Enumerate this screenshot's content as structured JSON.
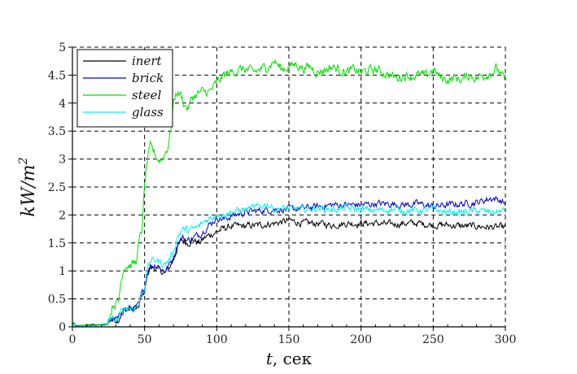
{
  "chart_data": {
    "type": "line",
    "title": "",
    "xlabel": "t, сек",
    "xlabel_var": "t",
    "xlabel_unit": ", сек",
    "ylabel": "kW/m^2",
    "ylabel_main": "kW/m",
    "ylabel_sup": "2",
    "xlim": [
      0,
      300
    ],
    "ylim": [
      0,
      5
    ],
    "xticks": [
      0,
      50,
      100,
      150,
      200,
      250,
      300
    ],
    "xtick_labels": [
      "0",
      "50",
      "100",
      "150",
      "200",
      "250",
      "300"
    ],
    "yticks": [
      0,
      0.5,
      1,
      1.5,
      2,
      2.5,
      3,
      3.5,
      4,
      4.5,
      5
    ],
    "ytick_labels": [
      "0",
      "0.5",
      "1",
      "1.5",
      "2",
      "2.5",
      "3",
      "3.5",
      "4",
      "4.5",
      "5"
    ],
    "x_minor_step": 10,
    "grid": true,
    "grid_style": "dashed",
    "legend_position": "upper left",
    "series": [
      {
        "name": "inert",
        "color": "#000000",
        "noise": 0.05,
        "points": [
          [
            0,
            0.05
          ],
          [
            1,
            0.07
          ],
          [
            2,
            0.02
          ],
          [
            5,
            0.02
          ],
          [
            15,
            0.03
          ],
          [
            24,
            0.04
          ],
          [
            26,
            0.12
          ],
          [
            32,
            0.13
          ],
          [
            34,
            0.25
          ],
          [
            36,
            0.3
          ],
          [
            44,
            0.32
          ],
          [
            46,
            0.35
          ],
          [
            48,
            0.55
          ],
          [
            50,
            0.62
          ],
          [
            52,
            0.95
          ],
          [
            54,
            1.05
          ],
          [
            58,
            1.05
          ],
          [
            61,
            1.0
          ],
          [
            64,
            0.95
          ],
          [
            67,
            1.05
          ],
          [
            70,
            1.2
          ],
          [
            73,
            1.45
          ],
          [
            76,
            1.55
          ],
          [
            80,
            1.5
          ],
          [
            84,
            1.55
          ],
          [
            88,
            1.5
          ],
          [
            92,
            1.6
          ],
          [
            96,
            1.65
          ],
          [
            100,
            1.7
          ],
          [
            104,
            1.75
          ],
          [
            110,
            1.8
          ],
          [
            120,
            1.8
          ],
          [
            130,
            1.82
          ],
          [
            140,
            1.85
          ],
          [
            150,
            1.9
          ],
          [
            160,
            1.85
          ],
          [
            170,
            1.85
          ],
          [
            180,
            1.82
          ],
          [
            190,
            1.85
          ],
          [
            200,
            1.85
          ],
          [
            210,
            1.85
          ],
          [
            220,
            1.83
          ],
          [
            230,
            1.85
          ],
          [
            240,
            1.85
          ],
          [
            250,
            1.82
          ],
          [
            260,
            1.82
          ],
          [
            270,
            1.8
          ],
          [
            280,
            1.8
          ],
          [
            290,
            1.78
          ],
          [
            300,
            1.78
          ]
        ]
      },
      {
        "name": "brick",
        "color": "#0000c8",
        "noise": 0.05,
        "points": [
          [
            0,
            0.03
          ],
          [
            1,
            0.06
          ],
          [
            2,
            0.02
          ],
          [
            5,
            0.02
          ],
          [
            15,
            0.03
          ],
          [
            24,
            0.04
          ],
          [
            26,
            0.13
          ],
          [
            32,
            0.14
          ],
          [
            34,
            0.27
          ],
          [
            36,
            0.32
          ],
          [
            44,
            0.34
          ],
          [
            46,
            0.38
          ],
          [
            48,
            0.58
          ],
          [
            50,
            0.65
          ],
          [
            52,
            1.0
          ],
          [
            54,
            1.1
          ],
          [
            58,
            1.1
          ],
          [
            61,
            1.05
          ],
          [
            64,
            1.0
          ],
          [
            67,
            1.1
          ],
          [
            70,
            1.25
          ],
          [
            73,
            1.5
          ],
          [
            76,
            1.6
          ],
          [
            80,
            1.55
          ],
          [
            84,
            1.6
          ],
          [
            88,
            1.65
          ],
          [
            92,
            1.75
          ],
          [
            96,
            1.85
          ],
          [
            100,
            1.95
          ],
          [
            105,
            1.92
          ],
          [
            110,
            1.98
          ],
          [
            120,
            2.05
          ],
          [
            130,
            2.08
          ],
          [
            140,
            2.1
          ],
          [
            150,
            2.1
          ],
          [
            160,
            2.12
          ],
          [
            170,
            2.15
          ],
          [
            180,
            2.18
          ],
          [
            190,
            2.18
          ],
          [
            200,
            2.18
          ],
          [
            210,
            2.2
          ],
          [
            220,
            2.2
          ],
          [
            230,
            2.18
          ],
          [
            240,
            2.2
          ],
          [
            250,
            2.15
          ],
          [
            260,
            2.18
          ],
          [
            270,
            2.2
          ],
          [
            280,
            2.22
          ],
          [
            290,
            2.3
          ],
          [
            295,
            2.28
          ],
          [
            300,
            2.2
          ]
        ]
      },
      {
        "name": "steel",
        "color": "#00e000",
        "noise": 0.07,
        "points": [
          [
            0,
            0.02
          ],
          [
            1,
            0.08
          ],
          [
            2,
            0.01
          ],
          [
            5,
            0.02
          ],
          [
            10,
            0.04
          ],
          [
            20,
            0.05
          ],
          [
            24,
            0.05
          ],
          [
            26,
            0.2
          ],
          [
            28,
            0.4
          ],
          [
            32,
            0.45
          ],
          [
            34,
            0.9
          ],
          [
            36,
            1.1
          ],
          [
            40,
            1.1
          ],
          [
            44,
            1.15
          ],
          [
            46,
            1.5
          ],
          [
            48,
            1.7
          ],
          [
            50,
            2.5
          ],
          [
            52,
            3.0
          ],
          [
            54,
            3.2
          ],
          [
            56,
            3.15
          ],
          [
            58,
            3.05
          ],
          [
            60,
            2.98
          ],
          [
            62,
            3.0
          ],
          [
            64,
            3.1
          ],
          [
            66,
            3.2
          ],
          [
            68,
            3.5
          ],
          [
            70,
            4.0
          ],
          [
            72,
            4.2
          ],
          [
            75,
            4.15
          ],
          [
            78,
            3.95
          ],
          [
            80,
            3.9
          ],
          [
            83,
            4.1
          ],
          [
            86,
            4.15
          ],
          [
            90,
            4.2
          ],
          [
            95,
            4.2
          ],
          [
            100,
            4.35
          ],
          [
            105,
            4.5
          ],
          [
            110,
            4.55
          ],
          [
            115,
            4.6
          ],
          [
            120,
            4.6
          ],
          [
            125,
            4.55
          ],
          [
            130,
            4.6
          ],
          [
            135,
            4.65
          ],
          [
            140,
            4.75
          ],
          [
            145,
            4.6
          ],
          [
            150,
            4.65
          ],
          [
            155,
            4.7
          ],
          [
            160,
            4.62
          ],
          [
            165,
            4.65
          ],
          [
            170,
            4.55
          ],
          [
            175,
            4.6
          ],
          [
            180,
            4.65
          ],
          [
            185,
            4.6
          ],
          [
            190,
            4.55
          ],
          [
            195,
            4.6
          ],
          [
            200,
            4.55
          ],
          [
            205,
            4.58
          ],
          [
            210,
            4.6
          ],
          [
            215,
            4.55
          ],
          [
            220,
            4.5
          ],
          [
            225,
            4.45
          ],
          [
            230,
            4.5
          ],
          [
            235,
            4.48
          ],
          [
            240,
            4.5
          ],
          [
            245,
            4.48
          ],
          [
            250,
            4.6
          ],
          [
            255,
            4.45
          ],
          [
            260,
            4.42
          ],
          [
            265,
            4.45
          ],
          [
            270,
            4.42
          ],
          [
            275,
            4.5
          ],
          [
            280,
            4.45
          ],
          [
            285,
            4.5
          ],
          [
            290,
            4.55
          ],
          [
            294,
            4.62
          ],
          [
            297,
            4.5
          ],
          [
            300,
            4.4
          ]
        ]
      },
      {
        "name": "glass",
        "color": "#00f0f0",
        "noise": 0.05,
        "points": [
          [
            0,
            0.02
          ],
          [
            1,
            0.05
          ],
          [
            2,
            0.01
          ],
          [
            5,
            0.01
          ],
          [
            15,
            0.02
          ],
          [
            24,
            0.03
          ],
          [
            26,
            0.12
          ],
          [
            32,
            0.14
          ],
          [
            34,
            0.28
          ],
          [
            36,
            0.33
          ],
          [
            44,
            0.35
          ],
          [
            46,
            0.4
          ],
          [
            48,
            0.6
          ],
          [
            50,
            0.7
          ],
          [
            52,
            1.05
          ],
          [
            54,
            1.18
          ],
          [
            58,
            1.2
          ],
          [
            61,
            1.15
          ],
          [
            64,
            1.12
          ],
          [
            67,
            1.2
          ],
          [
            70,
            1.35
          ],
          [
            73,
            1.62
          ],
          [
            76,
            1.75
          ],
          [
            80,
            1.72
          ],
          [
            84,
            1.75
          ],
          [
            88,
            1.8
          ],
          [
            92,
            1.9
          ],
          [
            96,
            1.95
          ],
          [
            100,
            2.02
          ],
          [
            105,
            2.0
          ],
          [
            110,
            2.05
          ],
          [
            120,
            2.1
          ],
          [
            130,
            2.15
          ],
          [
            135,
            2.2
          ],
          [
            140,
            2.1
          ],
          [
            150,
            2.12
          ],
          [
            160,
            2.1
          ],
          [
            170,
            2.12
          ],
          [
            180,
            2.1
          ],
          [
            190,
            2.12
          ],
          [
            200,
            2.1
          ],
          [
            210,
            2.08
          ],
          [
            220,
            2.1
          ],
          [
            230,
            2.08
          ],
          [
            240,
            2.08
          ],
          [
            250,
            2.1
          ],
          [
            260,
            2.05
          ],
          [
            270,
            2.05
          ],
          [
            280,
            2.08
          ],
          [
            290,
            2.05
          ],
          [
            300,
            2.08
          ]
        ]
      }
    ]
  }
}
